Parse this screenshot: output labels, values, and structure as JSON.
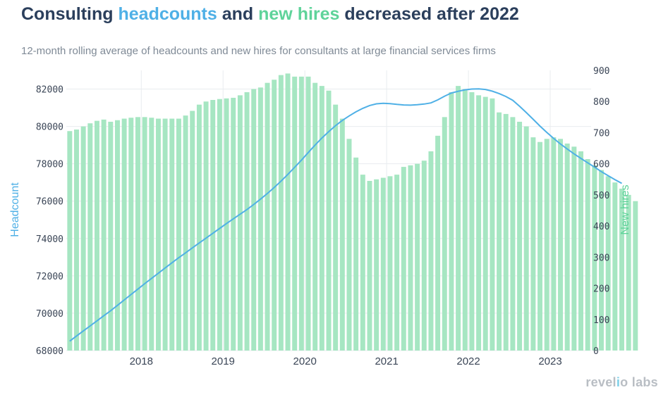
{
  "colors": {
    "headcount": "#4fb0e6",
    "new_hires": "#a6e6c2",
    "new_hires_text": "#5fd39a",
    "title": "#2b3f5c"
  },
  "header": {
    "title_prefix": "Consulting ",
    "title_headcounts": "headcounts",
    "title_and": " and ",
    "title_new_hires": "new hires",
    "title_suffix": " decreased after 2022",
    "subtitle": "12-month rolling average of headcounts and new hires for consultants at large financial services firms"
  },
  "branding": {
    "logo_part1": "revel",
    "logo_i": "i",
    "logo_part2": "o labs"
  },
  "chart_data": {
    "type": "bar+line",
    "x_range": [
      "2017-02",
      "2023-06"
    ],
    "x_ticks": [
      "2018",
      "2019",
      "2020",
      "2021",
      "2022",
      "2023"
    ],
    "ylabel_left": "Headcount",
    "ylabel_right": "New hires",
    "ylim_left": [
      68000,
      83000
    ],
    "yticks_left": [
      68000,
      70000,
      72000,
      74000,
      76000,
      78000,
      80000,
      82000
    ],
    "ylim_right": [
      0,
      900
    ],
    "yticks_right": [
      0,
      100,
      200,
      300,
      400,
      500,
      600,
      700,
      800,
      900
    ],
    "grid": true,
    "series": [
      {
        "name": "new hires",
        "axis": "right",
        "type": "bar",
        "start": "2017-02",
        "values": [
          705,
          710,
          720,
          730,
          738,
          742,
          735,
          740,
          745,
          748,
          750,
          750,
          748,
          745,
          745,
          745,
          745,
          755,
          770,
          790,
          800,
          805,
          808,
          810,
          812,
          820,
          830,
          840,
          845,
          860,
          870,
          885,
          890,
          880,
          880,
          880,
          860,
          850,
          835,
          790,
          745,
          680,
          620,
          565,
          545,
          550,
          555,
          560,
          565,
          590,
          595,
          600,
          610,
          640,
          690,
          750,
          830,
          850,
          840,
          830,
          820,
          815,
          810,
          765,
          760,
          750,
          735,
          720,
          685,
          670,
          680,
          685,
          680,
          665,
          655,
          640,
          615,
          595,
          580,
          560,
          540,
          520,
          500,
          480
        ]
      },
      {
        "name": "headcounts",
        "axis": "left",
        "type": "line",
        "start": "2017-02",
        "values": [
          68500,
          68780,
          69050,
          69320,
          69590,
          69860,
          70130,
          70420,
          70710,
          71000,
          71290,
          71580,
          71860,
          72140,
          72420,
          72700,
          72970,
          73230,
          73500,
          73760,
          74020,
          74280,
          74540,
          74800,
          75050,
          75300,
          75550,
          75820,
          76110,
          76410,
          76730,
          77070,
          77430,
          77810,
          78200,
          78600,
          79000,
          79380,
          79720,
          80040,
          80320,
          80560,
          80780,
          80970,
          81120,
          81210,
          81240,
          81220,
          81180,
          81150,
          81140,
          81160,
          81200,
          81260,
          81420,
          81620,
          81790,
          81880,
          81960,
          82000,
          82010,
          81980,
          81890,
          81760,
          81600,
          81400,
          81080,
          80740,
          80380,
          80020,
          79680,
          79360,
          79060,
          78790,
          78530,
          78290,
          78050,
          77820,
          77580,
          77360,
          77150,
          76950
        ]
      }
    ]
  }
}
